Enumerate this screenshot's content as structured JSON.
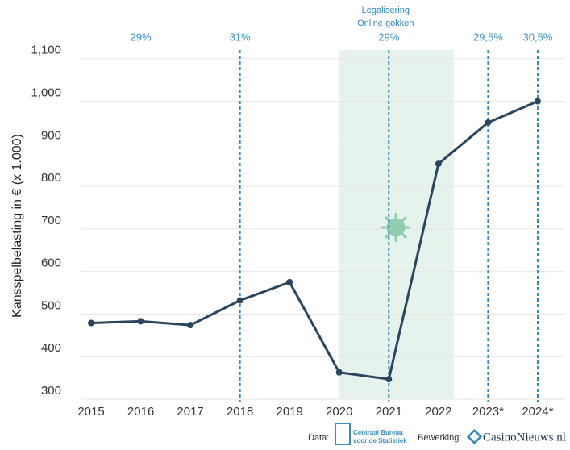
{
  "chart_data": {
    "type": "line",
    "y_label": "Kansspelbelasting in € (x 1.000)",
    "categories": [
      "2015",
      "2016",
      "2017",
      "2018",
      "2019",
      "2020",
      "2021",
      "2022",
      "2023*",
      "2024*"
    ],
    "values": [
      479,
      483,
      474,
      532,
      575,
      363,
      347,
      853,
      950,
      1000
    ],
    "color": "#2a4560",
    "ylim": [
      300,
      1110
    ],
    "yticks": [
      300,
      400,
      500,
      600,
      700,
      800,
      900,
      {
        "value": 1000,
        "label": "1,000"
      },
      {
        "value": 1100,
        "label": "1,100"
      }
    ],
    "grid": true,
    "rate_labels": [
      null,
      "29%",
      null,
      "31%",
      null,
      null,
      "29%",
      null,
      "29,5%",
      "30,5%"
    ],
    "rate_lines": [
      false,
      false,
      false,
      true,
      false,
      false,
      true,
      false,
      true,
      true
    ],
    "rate_color": "#2e87c0",
    "highlight_text": [
      "Legalisering",
      "Online gokken"
    ],
    "highlight_color": "#e6f2ec"
  },
  "footer": {
    "data_label": "Data:",
    "source_lines": [
      "Centraal Bureau",
      "voor de Statistiek"
    ],
    "edit_label": "Bewerking:",
    "brand": "CasinoNieuws.nl"
  }
}
